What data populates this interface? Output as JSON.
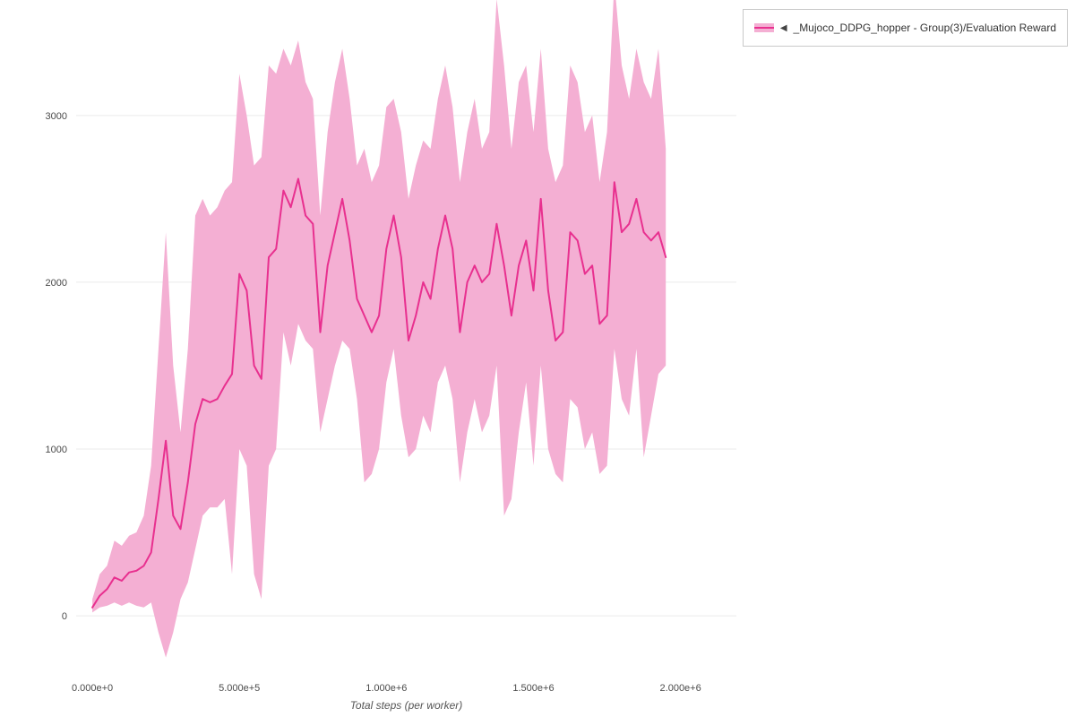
{
  "legend": {
    "collapse_icon": "◀",
    "series_label": "_Mujoco_DDPG_hopper - Group(3)/Evaluation Reward"
  },
  "axes": {
    "x_title": "Total steps (per worker)",
    "x_ticks": [
      {
        "value": 0,
        "label": "0.000e+0"
      },
      {
        "value": 500000,
        "label": "5.000e+5"
      },
      {
        "value": 1000000,
        "label": "1.000e+6"
      },
      {
        "value": 1500000,
        "label": "1.500e+6"
      },
      {
        "value": 2000000,
        "label": "2.000e+6"
      }
    ],
    "y_ticks": [
      {
        "value": 0,
        "label": "0"
      },
      {
        "value": 1000,
        "label": "1000"
      },
      {
        "value": 2000,
        "label": "2000"
      },
      {
        "value": 3000,
        "label": "3000"
      }
    ]
  },
  "colors": {
    "line": "#e8308f",
    "band": "#f4afd3",
    "grid": "#ebebeb",
    "tick_text": "#4a4a4a",
    "axis_title": "#555555",
    "legend_border": "#c9c9c9"
  },
  "chart_data": {
    "type": "line",
    "title": "",
    "xlabel": "Total steps (per worker)",
    "ylabel": "",
    "grid": true,
    "legend_position": "top-right-outside",
    "x_range": [
      -55000,
      2190000
    ],
    "y_range": [
      -365,
      3660
    ],
    "series": [
      {
        "name": "_Mujoco_DDPG_hopper - Group(3)/Evaluation Reward",
        "color": "#e8308f",
        "band_color": "#f4afd3",
        "x": [
          0,
          25000,
          50000,
          75000,
          100000,
          125000,
          150000,
          175000,
          200000,
          225000,
          250000,
          275000,
          300000,
          325000,
          350000,
          375000,
          400000,
          425000,
          450000,
          475000,
          500000,
          525000,
          550000,
          575000,
          600000,
          625000,
          650000,
          675000,
          700000,
          725000,
          750000,
          775000,
          800000,
          825000,
          850000,
          875000,
          900000,
          925000,
          950000,
          975000,
          1000000,
          1025000,
          1050000,
          1075000,
          1100000,
          1125000,
          1150000,
          1175000,
          1200000,
          1225000,
          1250000,
          1275000,
          1300000,
          1325000,
          1350000,
          1375000,
          1400000,
          1425000,
          1450000,
          1475000,
          1500000,
          1525000,
          1550000,
          1575000,
          1600000,
          1625000,
          1650000,
          1675000,
          1700000,
          1725000,
          1750000,
          1775000,
          1800000,
          1825000,
          1850000,
          1875000,
          1900000,
          1925000,
          1950000
        ],
        "mean": [
          50,
          120,
          160,
          230,
          210,
          260,
          270,
          300,
          380,
          700,
          1050,
          600,
          520,
          800,
          1150,
          1300,
          1280,
          1300,
          1380,
          1450,
          2050,
          1950,
          1500,
          1420,
          2150,
          2200,
          2550,
          2450,
          2620,
          2400,
          2350,
          1700,
          2100,
          2300,
          2500,
          2250,
          1900,
          1800,
          1700,
          1800,
          2200,
          2400,
          2150,
          1650,
          1800,
          2000,
          1900,
          2200,
          2400,
          2200,
          1700,
          2000,
          2100,
          2000,
          2050,
          2350,
          2100,
          1800,
          2100,
          2250,
          1950,
          2500,
          1950,
          1650,
          1700,
          2300,
          2250,
          2050,
          2100,
          1750,
          1800,
          2600,
          2300,
          2350,
          2500,
          2300,
          2250,
          2300,
          2150
        ],
        "lower": [
          20,
          50,
          60,
          80,
          60,
          80,
          60,
          50,
          80,
          -100,
          -250,
          -100,
          100,
          200,
          400,
          600,
          650,
          650,
          700,
          250,
          1000,
          900,
          250,
          100,
          900,
          1000,
          1700,
          1500,
          1750,
          1650,
          1600,
          1100,
          1300,
          1500,
          1650,
          1600,
          1300,
          800,
          850,
          1000,
          1400,
          1600,
          1200,
          950,
          1000,
          1200,
          1100,
          1400,
          1500,
          1300,
          800,
          1100,
          1300,
          1100,
          1200,
          1500,
          600,
          700,
          1100,
          1400,
          900,
          1500,
          1000,
          850,
          800,
          1300,
          1250,
          1000,
          1100,
          850,
          900,
          1600,
          1300,
          1200,
          1600,
          950,
          1200,
          1450,
          1500
        ],
        "upper": [
          100,
          250,
          300,
          450,
          420,
          480,
          500,
          600,
          900,
          1600,
          2300,
          1500,
          1100,
          1600,
          2400,
          2500,
          2400,
          2450,
          2550,
          2600,
          3250,
          3000,
          2700,
          2750,
          3300,
          3250,
          3400,
          3300,
          3450,
          3200,
          3100,
          2400,
          2900,
          3200,
          3400,
          3100,
          2700,
          2800,
          2600,
          2700,
          3050,
          3100,
          2900,
          2500,
          2700,
          2850,
          2800,
          3100,
          3300,
          3050,
          2600,
          2900,
          3100,
          2800,
          2900,
          3700,
          3300,
          2800,
          3200,
          3300,
          2900,
          3400,
          2800,
          2600,
          2700,
          3300,
          3200,
          2900,
          3000,
          2600,
          2900,
          3800,
          3300,
          3100,
          3400,
          3200,
          3100,
          3400,
          2800
        ]
      }
    ]
  }
}
